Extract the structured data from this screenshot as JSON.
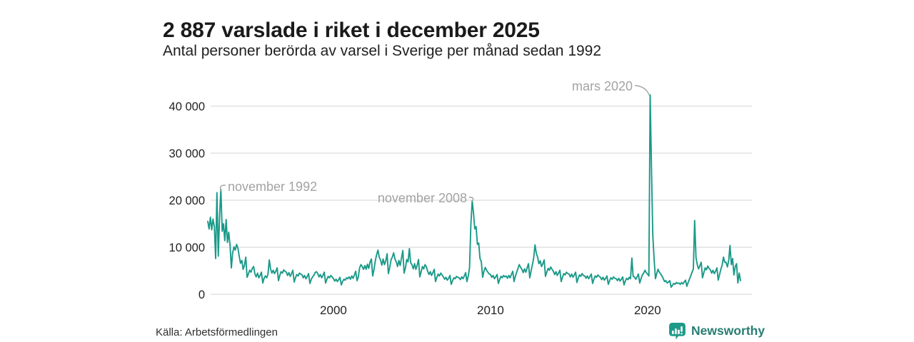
{
  "header": {
    "title": "2 887 varslade i riket i december 2025",
    "subtitle": "Antal personer berörda av varsel i Sverige per månad sedan 1992"
  },
  "footer": {
    "source": "Källa: Arbetsförmedlingen",
    "brand": "Newsworthy"
  },
  "icons": {
    "brand_logo": "bar-chart-speech-bubble-icon"
  },
  "colors": {
    "line": "#1a9988",
    "grid": "#dcdcdc",
    "tick_text": "#222222",
    "annotation": "#a3a3a3",
    "logo_icon": "#1f9a89",
    "logo_text": "#287d73",
    "background": "#ffffff"
  },
  "chart_data": {
    "type": "line",
    "title": "2 887 varslade i riket i december 2025",
    "subtitle": "Antal personer berörda av varsel i Sverige per månad sedan 1992",
    "source": "Källa: Arbetsförmedlingen",
    "unit": "personer",
    "frequency": "monthly",
    "x_start": {
      "year": 1992,
      "month": 1
    },
    "x_end": {
      "year": 2025,
      "month": 12
    },
    "ylim": [
      0,
      44000
    ],
    "grid": "horizontal",
    "legend": "none",
    "yticks": [
      {
        "value": 0,
        "label": "0"
      },
      {
        "value": 10000,
        "label": "10 000"
      },
      {
        "value": 20000,
        "label": "20 000"
      },
      {
        "value": 30000,
        "label": "30 000"
      },
      {
        "value": 40000,
        "label": "40 000"
      }
    ],
    "xticks": [
      {
        "year": 2000,
        "label": "2000"
      },
      {
        "year": 2010,
        "label": "2010"
      },
      {
        "year": 2020,
        "label": "2020"
      }
    ],
    "annotations": [
      {
        "label": "november 1992",
        "year": 1992,
        "month": 11,
        "value": 22300
      },
      {
        "label": "november 2008",
        "year": 2008,
        "month": 11,
        "value": 19900
      },
      {
        "label": "mars 2020",
        "year": 2020,
        "month": 3,
        "value": 42400
      }
    ],
    "latest": {
      "label": "december 2025",
      "value": 2887
    },
    "series": [
      {
        "name": "Antal personer berörda av varsel per månad",
        "values": [
          15500,
          13900,
          16400,
          13700,
          16000,
          14400,
          7600,
          21600,
          8100,
          16500,
          22300,
          13400,
          15000,
          11400,
          15900,
          11000,
          13200,
          10400,
          5600,
          8800,
          10100,
          9400,
          10600,
          9800,
          8100,
          6600,
          7200,
          5300,
          6100,
          7900,
          3600,
          4300,
          5100,
          4700,
          5500,
          5900,
          4300,
          3700,
          4500,
          3500,
          4000,
          4700,
          2400,
          3400,
          3900,
          3500,
          4300,
          7300,
          5300,
          4500,
          5100,
          4400,
          4900,
          5600,
          2900,
          4000,
          4800,
          4500,
          5200,
          4900,
          4700,
          4000,
          4600,
          3800,
          4400,
          5100,
          2600,
          3500,
          4200,
          3900,
          4500,
          4300,
          4100,
          3500,
          4000,
          3300,
          3800,
          4400,
          2300,
          3100,
          3700,
          4000,
          4600,
          4800,
          4400,
          3700,
          4200,
          3500,
          4000,
          4700,
          2400,
          3200,
          3800,
          3500,
          4000,
          3700,
          3300,
          2800,
          3200,
          2700,
          3100,
          3600,
          2000,
          2700,
          3200,
          3000,
          3500,
          3300,
          3700,
          3200,
          3900,
          3400,
          4100,
          4900,
          2900,
          3700,
          5600,
          6300,
          5900,
          5300,
          6100,
          5300,
          6400,
          5500,
          6900,
          7500,
          3900,
          5300,
          7100,
          8400,
          9400,
          7900,
          7300,
          6200,
          7500,
          6300,
          7100,
          8600,
          4400,
          5700,
          7300,
          7900,
          8800,
          7500,
          6900,
          5900,
          7200,
          6100,
          7700,
          9300,
          4500,
          5600,
          7400,
          6900,
          9700,
          6700,
          6300,
          5400,
          6500,
          5300,
          6200,
          7400,
          3700,
          4800,
          5900,
          5400,
          6300,
          5800,
          4900,
          4200,
          4800,
          4000,
          4600,
          5300,
          2700,
          3600,
          4300,
          3900,
          4500,
          4100,
          3700,
          3200,
          3600,
          3000,
          3400,
          4000,
          2100,
          2900,
          3500,
          3300,
          3800,
          3600,
          3500,
          3100,
          3700,
          3300,
          3900,
          4600,
          2700,
          3900,
          5700,
          14800,
          19900,
          17300,
          13900,
          14400,
          10600,
          10900,
          7600,
          6900,
          3600,
          4900,
          5700,
          5100,
          4700,
          4300,
          4200,
          3600,
          4000,
          3300,
          3700,
          4200,
          2300,
          3100,
          3800,
          3500,
          4000,
          3700,
          3900,
          3400,
          4000,
          3500,
          4200,
          4900,
          2700,
          3800,
          4700,
          5500,
          6300,
          5700,
          5300,
          4600,
          5400,
          4700,
          5600,
          6500,
          3500,
          4900,
          6300,
          7700,
          10500,
          8700,
          7900,
          6500,
          7100,
          5900,
          6500,
          7300,
          3800,
          4700,
          5500,
          5100,
          5800,
          5300,
          4900,
          4200,
          4800,
          4000,
          4500,
          5100,
          2700,
          3600,
          4400,
          4100,
          4700,
          4400,
          4300,
          3700,
          4300,
          3600,
          4100,
          4700,
          2500,
          3400,
          4100,
          3800,
          4400,
          4000,
          3900,
          3400,
          3900,
          3300,
          3800,
          4300,
          2300,
          3200,
          3900,
          3600,
          4100,
          3800,
          3600,
          3100,
          3600,
          3000,
          3400,
          3900,
          2100,
          2900,
          3500,
          3200,
          3700,
          3400,
          3300,
          2900,
          3400,
          2800,
          3200,
          3700,
          2000,
          2800,
          3400,
          3100,
          3600,
          3300,
          7700,
          3800,
          3700,
          3200,
          3700,
          4300,
          2400,
          3300,
          4100,
          4500,
          5100,
          4600,
          4300,
          3900,
          42400,
          26500,
          12600,
          7600,
          3300,
          4400,
          5300,
          4700,
          4300,
          3900,
          3300,
          2700,
          2900,
          2400,
          2600,
          2900,
          1500,
          1900,
          2300,
          2100,
          2500,
          2300,
          2400,
          2100,
          2500,
          2200,
          2600,
          3000,
          1700,
          2500,
          3200,
          3900,
          4700,
          5400,
          15700,
          7800,
          6300,
          5400,
          6100,
          6800,
          3500,
          4600,
          5600,
          5200,
          6000,
          5500,
          5200,
          4500,
          5100,
          4400,
          4900,
          5600,
          3000,
          4200,
          5300,
          6200,
          7900,
          6800,
          6800,
          5800,
          7200,
          10400,
          6300,
          7600,
          4100,
          5900,
          6500,
          2400,
          4500,
          2887
        ]
      }
    ]
  }
}
